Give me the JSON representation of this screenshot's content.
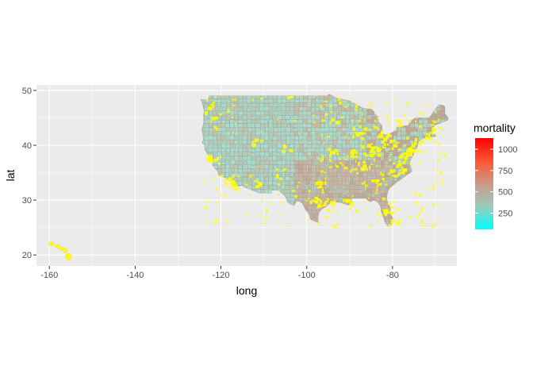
{
  "chart_data": {
    "type": "map",
    "title": "",
    "xlabel": "long",
    "ylabel": "lat",
    "xlim": [
      -163,
      -65
    ],
    "ylim": [
      18,
      51
    ],
    "x_ticks": [
      -160,
      -140,
      -120,
      -100,
      -80
    ],
    "y_ticks": [
      20,
      30,
      40,
      50
    ],
    "x_tick_labels": [
      "-160",
      "-140",
      "-120",
      "-100",
      "-80"
    ],
    "y_tick_labels": [
      "20",
      "30",
      "40",
      "50"
    ],
    "grid": true,
    "panel_background": "#ebebeb",
    "border_color": "#999999",
    "highlight_color": "#ffff00",
    "legend": {
      "title": "mortality",
      "position": "right",
      "range": [
        60,
        1130
      ],
      "breaks": [
        250,
        500,
        750,
        1000
      ],
      "labels": [
        "250",
        "500",
        "750",
        "1000"
      ],
      "colors": [
        "#00ffff",
        "#99ccbb",
        "#cc9988",
        "#ff5533",
        "#ff0000"
      ]
    }
  }
}
